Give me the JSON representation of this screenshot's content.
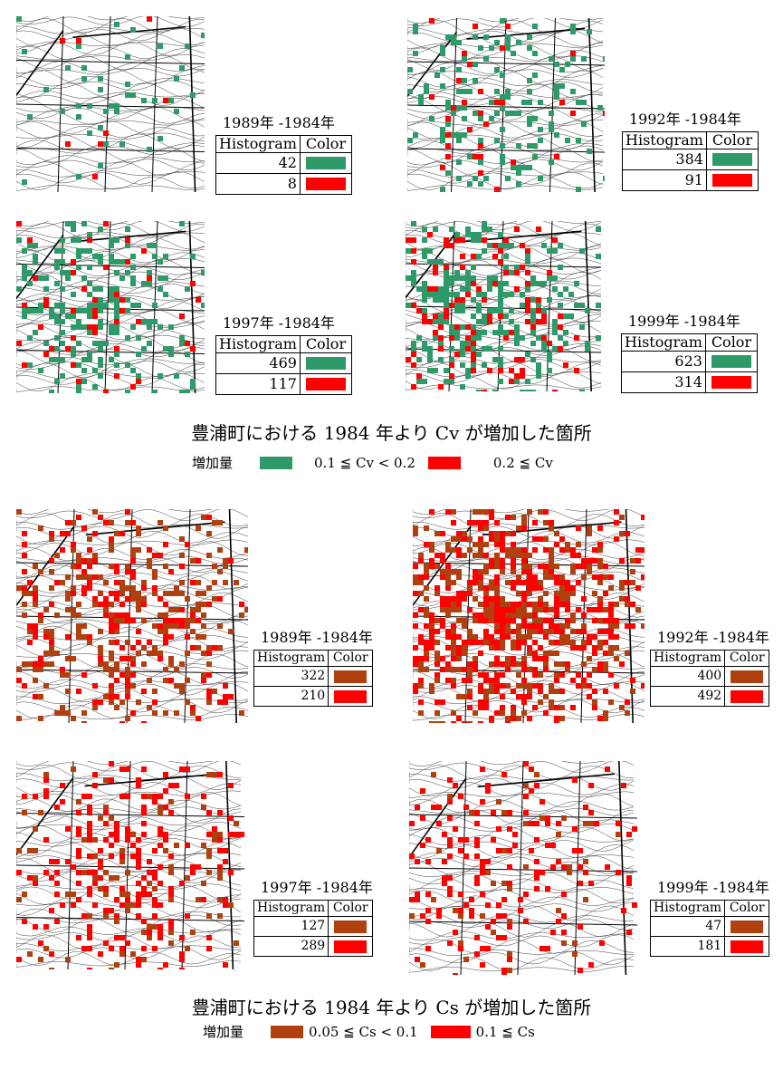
{
  "colors": {
    "cv_low": "#2e9a6a",
    "cv_high": "#ff0000",
    "cs_low": "#b04010",
    "cs_high": "#ff0000",
    "grid": "#000000"
  },
  "table_headers": {
    "histogram": "Histogram",
    "color": "Color"
  },
  "cv_section": {
    "panels": [
      {
        "period": "1989年 -1984年",
        "low_count": "42",
        "high_count": "8"
      },
      {
        "period": "1992年 -1984年",
        "low_count": "384",
        "high_count": "91"
      },
      {
        "period": "1997年 -1984年",
        "low_count": "469",
        "high_count": "117"
      },
      {
        "period": "1999年 -1984年",
        "low_count": "623",
        "high_count": "314"
      }
    ],
    "caption": "豊浦町における 1984 年より Cv が増加した箇所",
    "legend": {
      "label": "増加量",
      "low_text": "0.1 ≦ Cv < 0.2",
      "high_text": "0.2 ≦ Cv"
    }
  },
  "cs_section": {
    "panels": [
      {
        "period": "1989年 -1984年",
        "low_count": "322",
        "high_count": "210"
      },
      {
        "period": "1992年 -1984年",
        "low_count": "400",
        "high_count": "492"
      },
      {
        "period": "1997年 -1984年",
        "low_count": "127",
        "high_count": "289"
      },
      {
        "period": "1999年 -1984年",
        "low_count": "47",
        "high_count": "181"
      }
    ],
    "caption": "豊浦町における 1984 年より Cs が増加した箇所",
    "legend": {
      "label": "増加量",
      "low_text": "0.05 ≦ Cs < 0.1",
      "high_text": "0.1 ≦ Cs"
    }
  }
}
